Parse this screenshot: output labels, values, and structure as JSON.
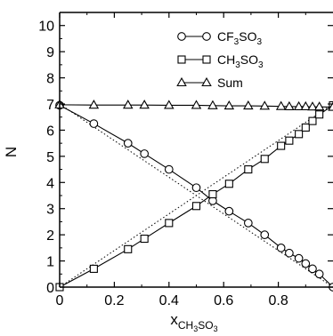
{
  "chart_data": {
    "type": "line",
    "xlabel": {
      "main": "x",
      "sub_a": "CH",
      "sub_b": "3",
      "sub_c": "SO",
      "sub_d": "3"
    },
    "ylabel": "N",
    "xlim": [
      0,
      1
    ],
    "ylim": [
      0,
      10.5
    ],
    "x_ticks": [
      "0",
      "0.2",
      "0.4",
      "0.6",
      "0.8"
    ],
    "x_tick_values": [
      0,
      0.2,
      0.4,
      0.6,
      0.8
    ],
    "y_ticks": [
      "0",
      "1",
      "2",
      "3",
      "4",
      "5",
      "6",
      "7",
      "8",
      "9",
      "10"
    ],
    "y_tick_values": [
      0,
      1,
      2,
      3,
      4,
      5,
      6,
      7,
      8,
      9,
      10
    ],
    "legend_placement": "top-right",
    "series": [
      {
        "name_parts": [
          "CF",
          "3",
          "SO",
          "3"
        ],
        "marker": "circle",
        "x": [
          0,
          0.125,
          0.25,
          0.31,
          0.4,
          0.5,
          0.56,
          0.62,
          0.69,
          0.75,
          0.81,
          0.84,
          0.875,
          0.9,
          0.925,
          0.95,
          1.0
        ],
        "y": [
          6.95,
          6.25,
          5.5,
          5.1,
          4.5,
          3.8,
          3.3,
          2.9,
          2.45,
          2.0,
          1.5,
          1.3,
          1.1,
          0.9,
          0.7,
          0.5,
          0.0
        ]
      },
      {
        "name_parts": [
          "CH",
          "3",
          "SO",
          "3"
        ],
        "marker": "square",
        "x": [
          0,
          0.125,
          0.25,
          0.31,
          0.4,
          0.5,
          0.56,
          0.62,
          0.69,
          0.75,
          0.81,
          0.84,
          0.875,
          0.9,
          0.925,
          0.95,
          1.0
        ],
        "y": [
          0.0,
          0.7,
          1.45,
          1.85,
          2.45,
          3.1,
          3.55,
          3.95,
          4.5,
          4.9,
          5.4,
          5.6,
          5.85,
          6.1,
          6.35,
          6.6,
          6.95
        ]
      },
      {
        "name": "Sum",
        "marker": "triangle",
        "x": [
          0,
          0.125,
          0.25,
          0.31,
          0.4,
          0.5,
          0.56,
          0.62,
          0.69,
          0.75,
          0.81,
          0.84,
          0.875,
          0.9,
          0.925,
          0.95,
          1.0
        ],
        "y": [
          6.97,
          6.96,
          6.96,
          6.96,
          6.95,
          6.95,
          6.94,
          6.93,
          6.93,
          6.92,
          6.91,
          6.9,
          6.9,
          6.9,
          6.89,
          6.89,
          6.88
        ]
      }
    ],
    "reference_lines": [
      {
        "style": "dotted",
        "x": [
          0,
          1
        ],
        "y": [
          7.0,
          0.0
        ]
      },
      {
        "style": "dotted",
        "x": [
          0,
          1
        ],
        "y": [
          0.0,
          7.0
        ]
      }
    ]
  }
}
